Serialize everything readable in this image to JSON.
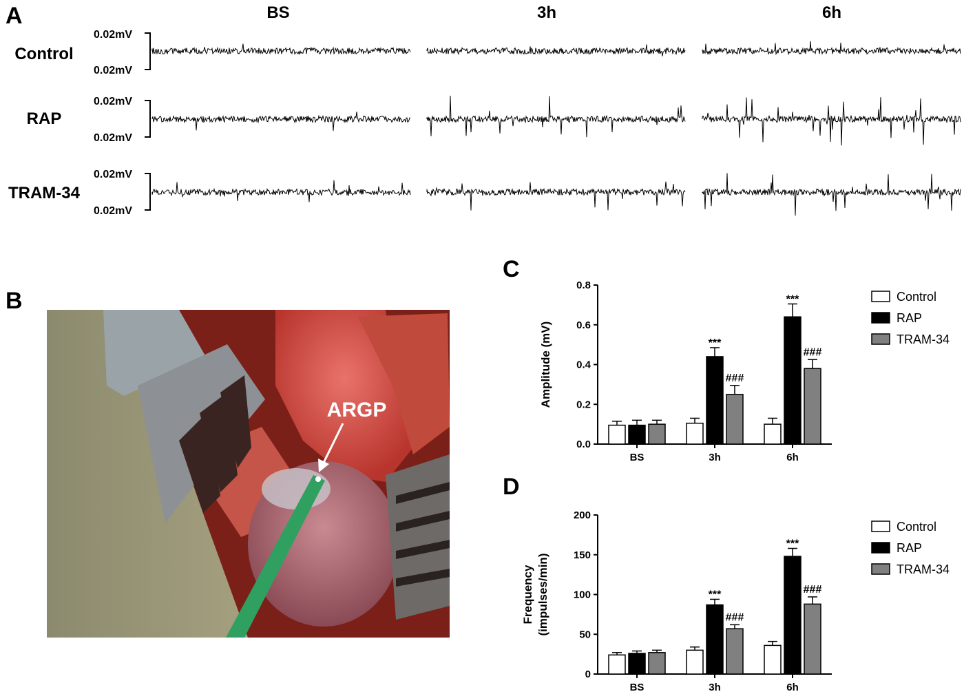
{
  "panels": {
    "A": "A",
    "B": "B",
    "C": "C",
    "D": "D"
  },
  "traces": {
    "columns": [
      "BS",
      "3h",
      "6h"
    ],
    "rows": [
      "Control",
      "RAP",
      "TRAM-34"
    ],
    "scale_label": "0.02mV",
    "activity_level": [
      [
        0.35,
        0.3,
        0.45
      ],
      [
        0.45,
        1.0,
        1.15
      ],
      [
        0.4,
        0.75,
        0.95
      ]
    ]
  },
  "photo": {
    "label": "ARGP"
  },
  "colors": {
    "control": "#ffffff",
    "rap": "#000000",
    "tram34": "#808080"
  },
  "chart_data": [
    {
      "type": "bar",
      "panel": "C",
      "categories": [
        "BS",
        "3h",
        "6h"
      ],
      "series": [
        {
          "name": "Control",
          "values": [
            0.095,
            0.105,
            0.1
          ],
          "errors": [
            0.02,
            0.025,
            0.03
          ]
        },
        {
          "name": "RAP",
          "values": [
            0.095,
            0.44,
            0.64
          ],
          "errors": [
            0.025,
            0.045,
            0.065
          ]
        },
        {
          "name": "TRAM-34",
          "values": [
            0.1,
            0.25,
            0.38
          ],
          "errors": [
            0.02,
            0.045,
            0.045
          ]
        }
      ],
      "ylabel": "Amplitude (mV)",
      "ylim": [
        0,
        0.8
      ],
      "yticks": [
        "0.0",
        "0.2",
        "0.4",
        "0.6",
        "0.8"
      ],
      "annotations": [
        {
          "category": "3h",
          "series": "RAP",
          "text": "***"
        },
        {
          "category": "3h",
          "series": "TRAM-34",
          "text": "###"
        },
        {
          "category": "6h",
          "series": "RAP",
          "text": "***"
        },
        {
          "category": "6h",
          "series": "TRAM-34",
          "text": "###"
        }
      ],
      "legend": "right"
    },
    {
      "type": "bar",
      "panel": "D",
      "categories": [
        "BS",
        "3h",
        "6h"
      ],
      "series": [
        {
          "name": "Control",
          "values": [
            24,
            30,
            36
          ],
          "errors": [
            3,
            4,
            5
          ]
        },
        {
          "name": "RAP",
          "values": [
            26,
            87,
            148
          ],
          "errors": [
            3,
            7,
            10
          ]
        },
        {
          "name": "TRAM-34",
          "values": [
            27,
            57,
            88
          ],
          "errors": [
            3,
            5,
            9
          ]
        }
      ],
      "ylabel": [
        "Frequency",
        "(impulses/min)"
      ],
      "ylim": [
        0,
        200
      ],
      "yticks": [
        "0",
        "50",
        "100",
        "150",
        "200"
      ],
      "annotations": [
        {
          "category": "3h",
          "series": "RAP",
          "text": "***"
        },
        {
          "category": "3h",
          "series": "TRAM-34",
          "text": "###"
        },
        {
          "category": "6h",
          "series": "RAP",
          "text": "***"
        },
        {
          "category": "6h",
          "series": "TRAM-34",
          "text": "###"
        }
      ],
      "legend": "right"
    }
  ]
}
